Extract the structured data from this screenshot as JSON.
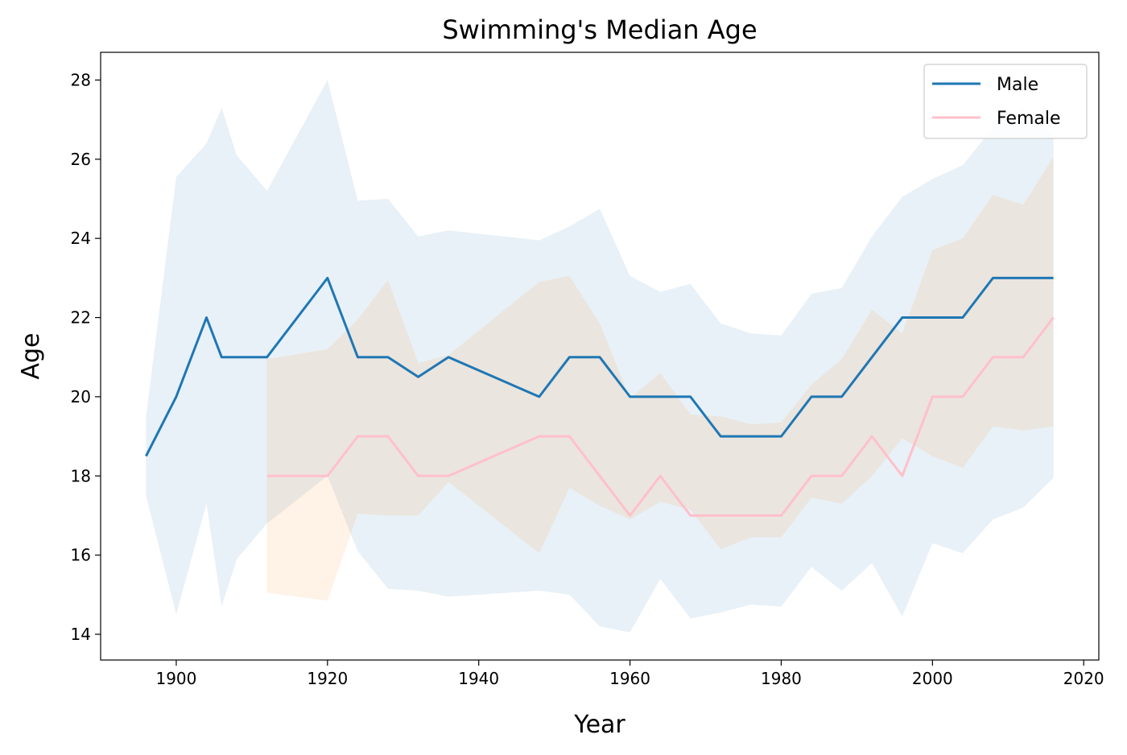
{
  "chart_data": {
    "type": "line",
    "title": "Swimming's Median Age",
    "xlabel": "Year",
    "ylabel": "Age",
    "xlim": [
      1890,
      2022
    ],
    "ylim": [
      13.35,
      28.7
    ],
    "xticks": [
      1900,
      1920,
      1940,
      1960,
      1980,
      2000,
      2020
    ],
    "yticks": [
      14,
      16,
      18,
      20,
      22,
      24,
      26,
      28
    ],
    "grid": false,
    "legend_position": "top-right",
    "series": [
      {
        "name": "Male",
        "color": "#1f77b4",
        "band_color": "#1f77b4",
        "x": [
          1896,
          1900,
          1904,
          1906,
          1908,
          1912,
          1920,
          1924,
          1928,
          1932,
          1936,
          1948,
          1952,
          1956,
          1960,
          1964,
          1968,
          1972,
          1976,
          1980,
          1984,
          1988,
          1992,
          1996,
          2000,
          2004,
          2008,
          2012,
          2016
        ],
        "y": [
          18.5,
          20,
          22,
          21,
          21,
          21,
          23,
          21,
          21,
          20.5,
          21,
          20,
          21,
          21,
          20,
          20,
          20,
          19,
          19,
          19,
          20,
          20,
          21,
          22,
          22,
          22,
          23,
          23,
          23
        ],
        "lower": [
          17.5,
          14.5,
          17.3,
          14.7,
          15.9,
          16.8,
          18.0,
          16.1,
          15.15,
          15.1,
          14.95,
          15.1,
          15.0,
          14.2,
          14.05,
          15.4,
          14.4,
          14.55,
          14.75,
          14.7,
          15.7,
          15.1,
          15.8,
          14.45,
          16.3,
          16.05,
          16.9,
          17.2,
          17.95
        ],
        "upper": [
          19.5,
          25.55,
          26.4,
          27.3,
          26.1,
          25.2,
          28.0,
          24.95,
          25.0,
          24.05,
          24.2,
          23.95,
          24.3,
          24.75,
          23.05,
          22.65,
          22.85,
          21.85,
          21.6,
          21.55,
          22.6,
          22.75,
          24.05,
          25.05,
          25.5,
          25.85,
          26.8,
          27.3,
          26.6
        ]
      },
      {
        "name": "Female",
        "color": "#ffc0cb",
        "band_color": "#ff7f0e",
        "x": [
          1912,
          1920,
          1924,
          1928,
          1932,
          1936,
          1948,
          1952,
          1956,
          1960,
          1964,
          1968,
          1972,
          1976,
          1980,
          1984,
          1988,
          1992,
          1996,
          2000,
          2004,
          2008,
          2012,
          2016
        ],
        "y": [
          18,
          18,
          19,
          19,
          18,
          18,
          19,
          19,
          18,
          17,
          18,
          17,
          17,
          17,
          17,
          18,
          18,
          19,
          18,
          20,
          20,
          21,
          21,
          22
        ],
        "lower": [
          15.05,
          14.85,
          17.05,
          17.0,
          17.0,
          17.85,
          16.05,
          17.7,
          17.25,
          16.9,
          17.35,
          17.15,
          16.15,
          16.45,
          16.45,
          17.45,
          17.3,
          18.0,
          18.95,
          18.5,
          18.2,
          19.25,
          19.15,
          19.25
        ],
        "upper": [
          20.95,
          21.2,
          21.95,
          22.95,
          20.85,
          21.05,
          22.9,
          23.05,
          21.85,
          19.95,
          20.6,
          19.55,
          19.5,
          19.3,
          19.35,
          20.3,
          20.95,
          22.2,
          21.6,
          23.7,
          24.0,
          25.1,
          24.85,
          26.05
        ]
      }
    ]
  }
}
